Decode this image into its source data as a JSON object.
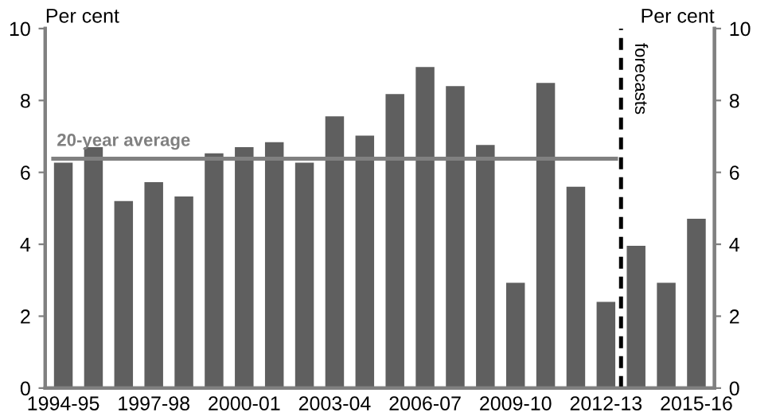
{
  "chart_data": {
    "type": "bar",
    "ylabel": "Per cent",
    "y2label": "Per cent",
    "categories": [
      "1994-95",
      null,
      null,
      "1997-98",
      null,
      null,
      "2000-01",
      null,
      null,
      "2003-04",
      null,
      null,
      "2006-07",
      null,
      null,
      "2009-10",
      null,
      null,
      "2012-13",
      null,
      null,
      "2015-16"
    ],
    "values": [
      6.27,
      6.7,
      5.2,
      5.73,
      5.33,
      6.53,
      6.7,
      6.84,
      6.27,
      7.56,
      7.02,
      8.18,
      8.93,
      8.4,
      6.76,
      2.93,
      8.49,
      5.6,
      2.4,
      3.96,
      2.93,
      4.71
    ],
    "color": "#5f5f5f",
    "ylim": [
      0,
      10
    ],
    "yticks": [
      0,
      2,
      4,
      6,
      8,
      10
    ],
    "y2lim": [
      0,
      10
    ],
    "y2ticks": [
      0,
      2,
      4,
      6,
      8,
      10
    ],
    "ref_lines": [
      {
        "axis": "y",
        "value": 6.38,
        "label": "20-year average",
        "color": "#808080",
        "line_style": "solid"
      }
    ],
    "annotations": [
      "forecasts"
    ],
    "grid": false
  }
}
